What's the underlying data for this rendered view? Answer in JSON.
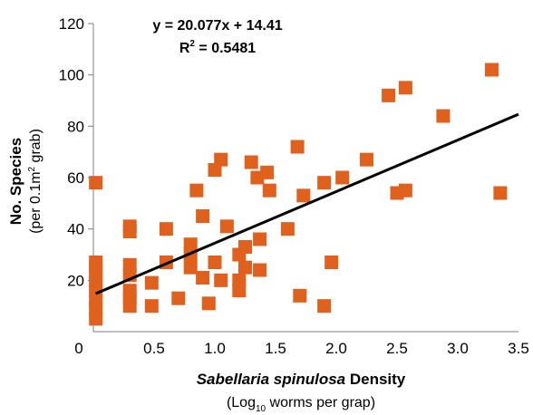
{
  "chart_data": {
    "type": "scatter",
    "equation": "y = 20.077x + 14.41",
    "r2_prefix": "R",
    "r2_sup": "2",
    "r2_value": " = 0.5481",
    "xlabel_italic": "Sabellaria spinulosa",
    "xlabel_rest": " Density",
    "xsub_pre": "(Log",
    "xsub_sub": "10",
    "xsub_post": " worms per grap)",
    "ylabel_main": "No. Species",
    "ysub_pre": "(per 0.1m",
    "ysub_sup": "2",
    "ysub_post": " grab)",
    "xlim": [
      0,
      3.5
    ],
    "ylim": [
      0,
      120
    ],
    "x_ticks": [
      "0",
      "0.5",
      "1.0",
      "1.5",
      "2.0",
      "2.5",
      "3.0",
      "3.5"
    ],
    "y_ticks": [
      "20",
      "40",
      "60",
      "80",
      "100",
      "120"
    ],
    "marker_color": "#e0601e",
    "trend": {
      "slope": 20.077,
      "intercept": 14.41
    },
    "points": [
      [
        0.02,
        58
      ],
      [
        0.02,
        27
      ],
      [
        0.02,
        25
      ],
      [
        0.02,
        22
      ],
      [
        0.02,
        19
      ],
      [
        0.02,
        16
      ],
      [
        0.02,
        12
      ],
      [
        0.02,
        9
      ],
      [
        0.02,
        5
      ],
      [
        0.3,
        41
      ],
      [
        0.3,
        39
      ],
      [
        0.3,
        26
      ],
      [
        0.3,
        22
      ],
      [
        0.3,
        16
      ],
      [
        0.3,
        13
      ],
      [
        0.3,
        10
      ],
      [
        0.48,
        19
      ],
      [
        0.48,
        10
      ],
      [
        0.6,
        40
      ],
      [
        0.6,
        27
      ],
      [
        0.7,
        13
      ],
      [
        0.8,
        34
      ],
      [
        0.8,
        30
      ],
      [
        0.8,
        25
      ],
      [
        0.85,
        55
      ],
      [
        0.9,
        45
      ],
      [
        0.9,
        21
      ],
      [
        0.95,
        11
      ],
      [
        1.0,
        63
      ],
      [
        1.0,
        27
      ],
      [
        1.05,
        67
      ],
      [
        1.05,
        20
      ],
      [
        1.1,
        41
      ],
      [
        1.2,
        30
      ],
      [
        1.2,
        20
      ],
      [
        1.2,
        16
      ],
      [
        1.25,
        33
      ],
      [
        1.25,
        25
      ],
      [
        1.3,
        66
      ],
      [
        1.35,
        60
      ],
      [
        1.37,
        36
      ],
      [
        1.37,
        24
      ],
      [
        1.43,
        62
      ],
      [
        1.45,
        55
      ],
      [
        1.6,
        40
      ],
      [
        1.68,
        72
      ],
      [
        1.7,
        14
      ],
      [
        1.73,
        53
      ],
      [
        1.9,
        58
      ],
      [
        1.9,
        10
      ],
      [
        1.96,
        27
      ],
      [
        2.05,
        60
      ],
      [
        2.25,
        67
      ],
      [
        2.43,
        92
      ],
      [
        2.5,
        54
      ],
      [
        2.57,
        95
      ],
      [
        2.57,
        55
      ],
      [
        2.88,
        84
      ],
      [
        3.28,
        102
      ],
      [
        3.35,
        54
      ]
    ]
  }
}
